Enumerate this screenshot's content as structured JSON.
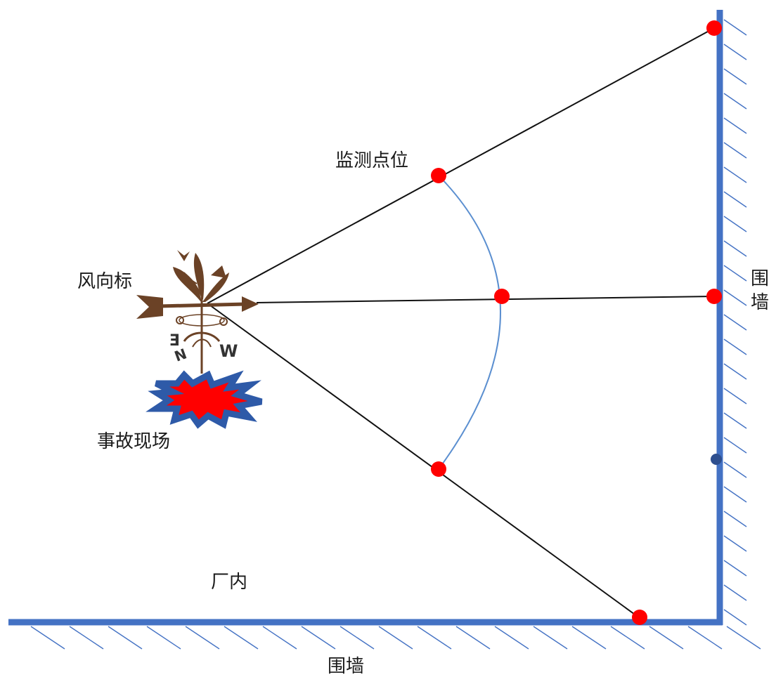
{
  "labels": {
    "monitoring_point": "监测点位",
    "wind_vane": "风向标",
    "accident_scene": "事故现场",
    "factory_inside": "厂内",
    "wall_right": "围墙",
    "wall_bottom": "围墙"
  },
  "vane_letters": {
    "east": "E",
    "west": "W",
    "north": "N"
  },
  "colors": {
    "wall": "#4472c4",
    "point": "#ff0000",
    "arc": "#5b8fd0",
    "ray": "#111111",
    "vane": "#6b4226",
    "burst_fill": "#ff0000",
    "burst_outline": "#2e5aa8",
    "marker": "#2e4f8f"
  },
  "icons": {
    "vane": "weather-vane-icon",
    "burst": "explosion-burst-icon"
  }
}
